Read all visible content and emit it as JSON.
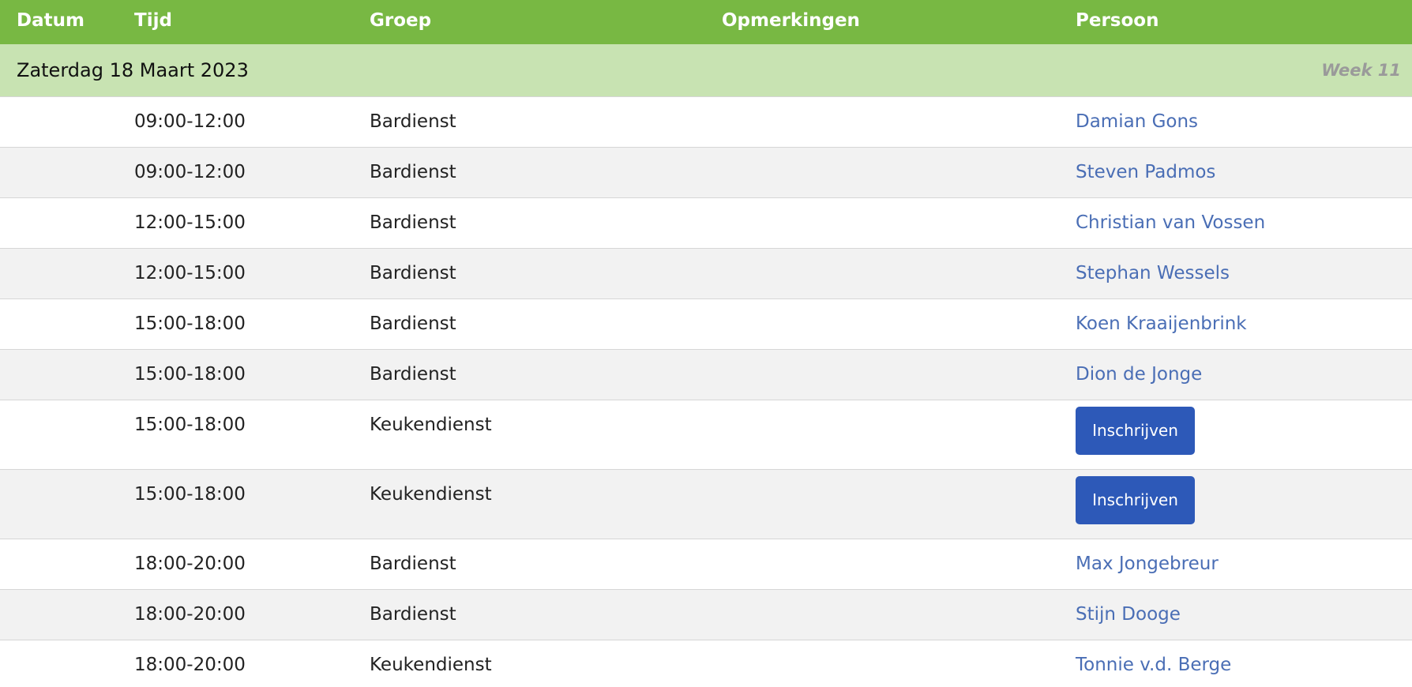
{
  "header": {
    "datum": "Datum",
    "tijd": "Tijd",
    "groep": "Groep",
    "opmerkingen": "Opmerkingen",
    "persoon": "Persoon"
  },
  "day": {
    "label": "Zaterdag 18 Maart 2023",
    "week": "Week 11"
  },
  "rows": [
    {
      "tijd": "09:00-12:00",
      "groep": "Bardienst",
      "persoon": "Damian Gons"
    },
    {
      "tijd": "09:00-12:00",
      "groep": "Bardienst",
      "persoon": "Steven Padmos"
    },
    {
      "tijd": "12:00-15:00",
      "groep": "Bardienst",
      "persoon": "Christian van Vossen"
    },
    {
      "tijd": "12:00-15:00",
      "groep": "Bardienst",
      "persoon": "Stephan Wessels"
    },
    {
      "tijd": "15:00-18:00",
      "groep": "Bardienst",
      "persoon": "Koen Kraaijenbrink"
    },
    {
      "tijd": "15:00-18:00",
      "groep": "Bardienst",
      "persoon": "Dion de Jonge"
    },
    {
      "tijd": "15:00-18:00",
      "groep": "Keukendienst",
      "button": "Inschrijven"
    },
    {
      "tijd": "15:00-18:00",
      "groep": "Keukendienst",
      "button": "Inschrijven"
    },
    {
      "tijd": "18:00-20:00",
      "groep": "Bardienst",
      "persoon": "Max Jongebreur"
    },
    {
      "tijd": "18:00-20:00",
      "groep": "Bardienst",
      "persoon": "Stijn Dooge"
    },
    {
      "tijd": "18:00-20:00",
      "groep": "Keukendienst",
      "persoon": "Tonnie v.d. Berge"
    }
  ],
  "colors": {
    "header_bg": "#78b843",
    "day_bg": "#c8e3b2",
    "link": "#4a6eb5",
    "button": "#2d59b8"
  }
}
